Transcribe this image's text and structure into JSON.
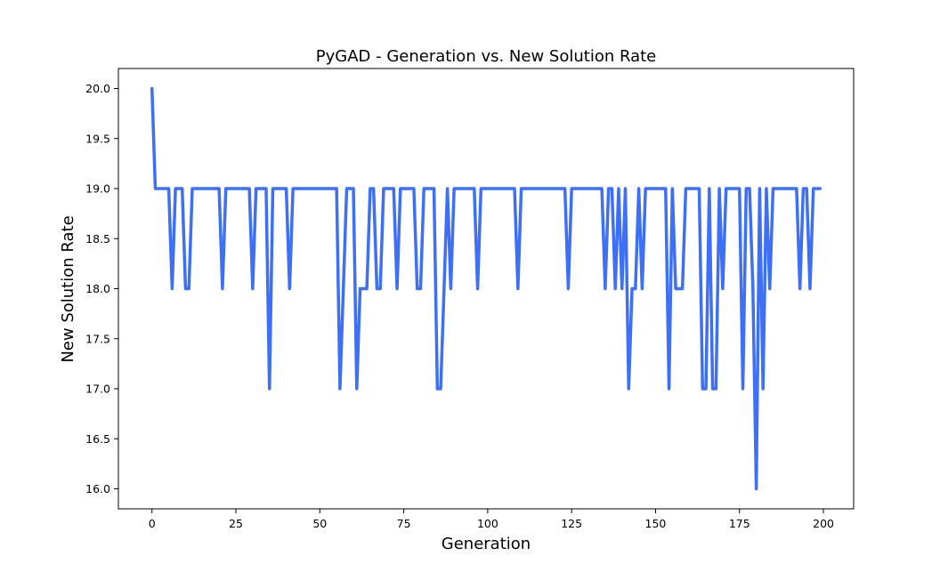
{
  "chart_data": {
    "type": "line",
    "title": "PyGAD - Generation vs. New Solution Rate",
    "xlabel": "Generation",
    "ylabel": "New Solution Rate",
    "xlim": [
      -10,
      209
    ],
    "ylim": [
      15.8,
      20.2
    ],
    "xticks": [
      0,
      25,
      50,
      75,
      100,
      125,
      150,
      175,
      200
    ],
    "yticks": [
      16.0,
      16.5,
      17.0,
      17.5,
      18.0,
      18.5,
      19.0,
      19.5,
      20.0
    ],
    "grid": false,
    "legend": "none",
    "series": [
      {
        "color": "#3d6ff7",
        "x": [
          0,
          1,
          2,
          3,
          4,
          5,
          6,
          7,
          8,
          9,
          10,
          11,
          12,
          13,
          14,
          15,
          16,
          17,
          18,
          19,
          20,
          21,
          22,
          23,
          24,
          25,
          26,
          27,
          28,
          29,
          30,
          31,
          32,
          33,
          34,
          35,
          36,
          37,
          38,
          39,
          40,
          41,
          42,
          43,
          44,
          45,
          46,
          47,
          48,
          49,
          50,
          51,
          52,
          53,
          54,
          55,
          56,
          57,
          58,
          59,
          60,
          61,
          62,
          63,
          64,
          65,
          66,
          67,
          68,
          69,
          70,
          71,
          72,
          73,
          74,
          75,
          76,
          77,
          78,
          79,
          80,
          81,
          82,
          83,
          84,
          85,
          86,
          87,
          88,
          89,
          90,
          91,
          92,
          93,
          94,
          95,
          96,
          97,
          98,
          99,
          100,
          101,
          102,
          103,
          104,
          105,
          106,
          107,
          108,
          109,
          110,
          111,
          112,
          113,
          114,
          115,
          116,
          117,
          118,
          119,
          120,
          121,
          122,
          123,
          124,
          125,
          126,
          127,
          128,
          129,
          130,
          131,
          132,
          133,
          134,
          135,
          136,
          137,
          138,
          139,
          140,
          141,
          142,
          143,
          144,
          145,
          146,
          147,
          148,
          149,
          150,
          151,
          152,
          153,
          154,
          155,
          156,
          157,
          158,
          159,
          160,
          161,
          162,
          163,
          164,
          165,
          166,
          167,
          168,
          169,
          170,
          171,
          172,
          173,
          174,
          175,
          176,
          177,
          178,
          179,
          180,
          181,
          182,
          183,
          184,
          185,
          186,
          187,
          188,
          189,
          190,
          191,
          192,
          193,
          194,
          195,
          196,
          197,
          198,
          199
        ],
        "values": [
          20,
          19,
          19,
          19,
          19,
          19,
          18,
          19,
          19,
          19,
          18,
          18,
          19,
          19,
          19,
          19,
          19,
          19,
          19,
          19,
          19,
          18,
          19,
          19,
          19,
          19,
          19,
          19,
          19,
          19,
          18,
          19,
          19,
          19,
          19,
          17,
          19,
          19,
          19,
          19,
          19,
          18,
          19,
          19,
          19,
          19,
          19,
          19,
          19,
          19,
          19,
          19,
          19,
          19,
          19,
          19,
          17,
          18,
          19,
          19,
          19,
          17,
          18,
          18,
          18,
          19,
          19,
          18,
          18,
          19,
          19,
          19,
          19,
          18,
          19,
          19,
          19,
          19,
          19,
          18,
          18,
          19,
          19,
          19,
          19,
          17,
          17,
          18,
          19,
          18,
          19,
          19,
          19,
          19,
          19,
          19,
          19,
          18,
          19,
          19,
          19,
          19,
          19,
          19,
          19,
          19,
          19,
          19,
          19,
          18,
          19,
          19,
          19,
          19,
          19,
          19,
          19,
          19,
          19,
          19,
          19,
          19,
          19,
          19,
          18,
          19,
          19,
          19,
          19,
          19,
          19,
          19,
          19,
          19,
          19,
          18,
          19,
          19,
          18,
          19,
          18,
          19,
          17,
          18,
          18,
          19,
          18,
          19,
          19,
          19,
          19,
          19,
          19,
          19,
          17,
          19,
          18,
          18,
          18,
          19,
          19,
          19,
          19,
          19,
          17,
          17,
          19,
          17,
          17,
          19,
          18,
          19,
          19,
          19,
          19,
          19,
          17,
          19,
          19,
          18,
          16,
          19,
          17,
          19,
          18,
          19,
          19,
          19,
          19,
          19,
          19,
          19,
          19,
          18,
          19,
          19,
          18,
          19,
          19,
          19
        ]
      }
    ]
  }
}
